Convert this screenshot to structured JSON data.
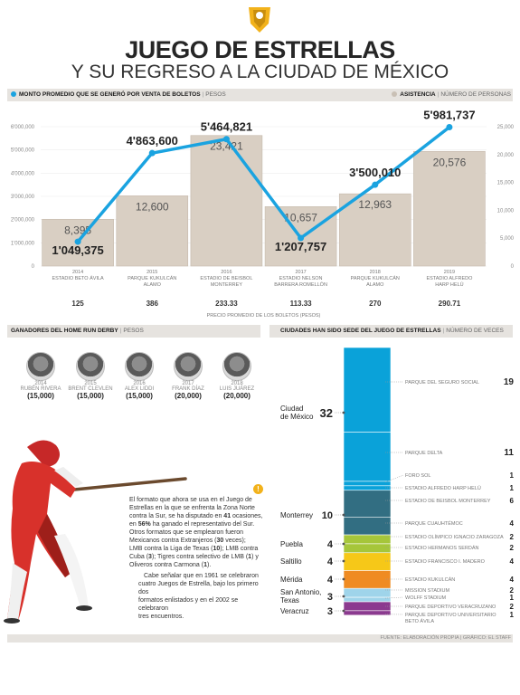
{
  "header": {
    "title": "JUEGO DE ESTRELLAS",
    "subtitle": "Y SU REGRESO A LA CIUDAD DE MÉXICO"
  },
  "colors": {
    "line": "#1aa3e0",
    "bar": "#d9cfc3",
    "bar_edge": "#c5b9ab",
    "accent": "#f2b21b"
  },
  "chart_data": [
    {
      "type": "bar+line",
      "legend_left": {
        "bold": "MONTO PROMEDIO QUE SE GENERÓ POR VENTA DE BOLETOS",
        "unit": "PESOS"
      },
      "legend_right": {
        "bold": "ASISTENCIA",
        "unit": "NÚMERO DE PERSONAS"
      },
      "categories": [
        {
          "year": "2014",
          "venue": [
            "ESTADIO BETO ÁVILA"
          ]
        },
        {
          "year": "2015",
          "venue": [
            "PARQUE KUKULCÁN",
            "ALAMO"
          ]
        },
        {
          "year": "2016",
          "venue": [
            "ESTADIO DE BEISBOL",
            "MONTERREY"
          ]
        },
        {
          "year": "2017",
          "venue": [
            "ESTADIO NELSON",
            "BARRERA ROMELLÓN"
          ]
        },
        {
          "year": "2018",
          "venue": [
            "PARQUE KUKULCÁN",
            "ALAMO"
          ]
        },
        {
          "year": "2019",
          "venue": [
            "ESTADIO ALFREDO",
            "HARP HELÚ"
          ]
        }
      ],
      "line_series": {
        "values": [
          1049375,
          4863600,
          5464821,
          1207757,
          3500010,
          5981737
        ],
        "labels": [
          "1'049,375",
          "4'863,600",
          "5'464,821",
          "1'207,757",
          "3'500,010",
          "5'981,737"
        ]
      },
      "bar_series": {
        "values": [
          8395,
          12600,
          23421,
          10657,
          12963,
          20576
        ],
        "labels": [
          "8,395",
          "12,600",
          "23,421",
          "10,657",
          "12,963",
          "20,576"
        ]
      },
      "left_axis": {
        "ylim": [
          0,
          6000000
        ],
        "ticks": [
          "0",
          "1'000,000",
          "2'000,000",
          "3'000,000",
          "4'000,000",
          "5'000,000",
          "6'000,000"
        ]
      },
      "right_axis": {
        "ylim": [
          0,
          25000
        ],
        "ticks": [
          "0",
          "5,000",
          "10,000",
          "15,000",
          "20,000",
          "25,000"
        ]
      },
      "avg_ticket": {
        "values": [
          "125",
          "386",
          "233.33",
          "113.33",
          "270",
          "290.71"
        ],
        "label": "PRECIO PROMEDIO DE LOS BOLETOS (PESOS)"
      }
    },
    {
      "type": "stacked-bar",
      "legend": {
        "bold": "CIUDADES HAN SIDO SEDE DEL JUEGO DE ESTRELLAS",
        "unit": "NÚMERO DE VECES"
      },
      "segments": [
        {
          "venue": "PARQUE DEL SEGURO SOCIAL",
          "value": 19,
          "color": "#0aa2d9"
        },
        {
          "venue": "PARQUE DELTA",
          "value": 11,
          "color": "#0aa2d9"
        },
        {
          "venue": "FORO SOL",
          "value": 1,
          "color": "#0aa2d9"
        },
        {
          "venue": "ESTADIO ALFREDO HARP HELÚ",
          "value": 1,
          "color": "#0aa2d9"
        },
        {
          "venue": "ESTADIO DE BEISBOL MONTERREY",
          "value": 6,
          "color": "#326e82"
        },
        {
          "venue": "PARQUE CUAUHTÉMOC",
          "value": 4,
          "color": "#326e82"
        },
        {
          "venue": "ESTADIO OLÍMPICO IGNACIO ZARAGOZA",
          "value": 2,
          "color": "#a6c63a"
        },
        {
          "venue": "ESTADIO HERMANOS SERDÁN",
          "value": 2,
          "color": "#a6c63a"
        },
        {
          "venue": "ESTADIO FRANCISCO I. MADERO",
          "value": 4,
          "color": "#f6c818"
        },
        {
          "venue": "ESTADIO KUKULCÁN",
          "value": 4,
          "color": "#ef8b22"
        },
        {
          "venue": "MISSION STADIUM",
          "value": 2,
          "color": "#9fd4ea"
        },
        {
          "venue": "WOLFF STADIUM",
          "value": 1,
          "color": "#9fd4ea"
        },
        {
          "venue": "PARQUE DEPORTIVO VERACRUZANO",
          "value": 2,
          "color": "#8b3a8f"
        },
        {
          "venue": "PARQUE DEPORTIVO UNIVERSITARIO BETO ÁVILA",
          "value": 1,
          "color": "#8b3a8f"
        }
      ],
      "cities": [
        {
          "name": "Ciudad de México",
          "total": "32"
        },
        {
          "name": "Monterrey",
          "total": "10"
        },
        {
          "name": "Puebla",
          "total": "4"
        },
        {
          "name": "Saltillo",
          "total": "4"
        },
        {
          "name": "Mérida",
          "total": "4"
        },
        {
          "name": "San Antonio, Texas",
          "total": "3"
        },
        {
          "name": "Veracruz",
          "total": "3"
        }
      ]
    }
  ],
  "derby": {
    "title_bold": "GANADORES DEL HOME RUN DERBY",
    "title_unit": "PESOS",
    "players": [
      {
        "year": "2014",
        "name": "RUBÉN RIVERA",
        "prize": "(15,000)"
      },
      {
        "year": "2015",
        "name": "BRENT CLEVLEN",
        "prize": "(15,000)"
      },
      {
        "year": "2016",
        "name": "ALEX LIDDI",
        "prize": "(15,000)"
      },
      {
        "year": "2017",
        "name": "FRANK DÍAZ",
        "prize": "(20,000)"
      },
      {
        "year": "2018",
        "name": "LUIS JUÁREZ",
        "prize": "(20,000)"
      }
    ]
  },
  "info_icon": "exclamation-icon",
  "paragraph1": [
    "El formato que ahora se usa en el Juego de",
    "Estrellas en la que se enfrenta la Zona Norte",
    "contra la Sur, se ha disputado en 41 ocasiones,",
    "en 56% ha ganado el representativo del Sur.",
    "Otros formatos que se emplearon fueron",
    "Mexicanos contra Extranjeros (30 veces);",
    "LMB contra la Liga de Texas (10); LMB contra",
    "Cuba (3); Tigres contra selectivo de LMB (1) y",
    "Oliveros contra Carmona (1)."
  ],
  "paragraph2": [
    "Cabe señalar que en 1961 se celebraron",
    "cuatro Juegos de Estrella, bajo los primero dos",
    "formatos enlistados y en el 2002 se celebraron",
    "tres encuentros."
  ],
  "footer": "FUENTE: ELABORACIÓN PROPIA | GRÁFICO: EL STAFF"
}
